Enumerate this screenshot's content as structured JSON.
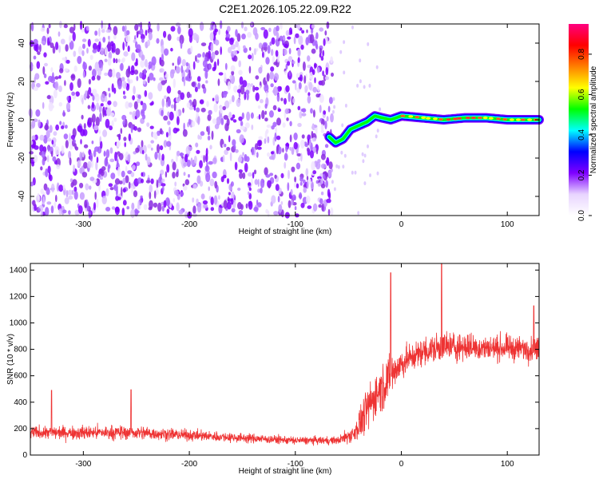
{
  "title": "C2E1.2026.105.22.09.R22",
  "chart_data": [
    {
      "type": "heatmap",
      "xlabel": "Height of straight line (km)",
      "ylabel": "Frequency (Hz)",
      "xlim": [
        -350,
        130
      ],
      "ylim": [
        -50,
        50
      ],
      "xticks": [
        -300,
        -200,
        -100,
        0,
        100
      ],
      "yticks": [
        -40,
        -20,
        0,
        20,
        40
      ],
      "colorbar": {
        "label": "Normalized spectral amplitude",
        "range": [
          0.0,
          0.95
        ],
        "ticks": [
          0.0,
          0.2,
          0.4,
          0.6,
          0.8
        ],
        "tick_labels": [
          "0.0",
          "0.2",
          "0.4",
          "0.6",
          "0.8"
        ],
        "colormap": [
          "#ffffff",
          "#e8d4ff",
          "#7f00ff",
          "#0000ff",
          "#00ffff",
          "#00ff00",
          "#ffff00",
          "#ff7f00",
          "#ff0000",
          "#ff0080"
        ]
      },
      "noise_region": {
        "x_range": [
          -350,
          -65
        ],
        "freq_range": [
          -50,
          50
        ],
        "amplitude_range": [
          0.0,
          0.2
        ]
      },
      "signal_trace": [
        {
          "x": -68,
          "f": -9
        },
        {
          "x": -62,
          "f": -12
        },
        {
          "x": -55,
          "f": -10
        },
        {
          "x": -48,
          "f": -5
        },
        {
          "x": -40,
          "f": -3
        },
        {
          "x": -32,
          "f": -1
        },
        {
          "x": -25,
          "f": 2
        },
        {
          "x": -18,
          "f": 1
        },
        {
          "x": -10,
          "f": 0
        },
        {
          "x": 0,
          "f": 2
        },
        {
          "x": 20,
          "f": 1
        },
        {
          "x": 40,
          "f": 0
        },
        {
          "x": 60,
          "f": 1
        },
        {
          "x": 80,
          "f": 1
        },
        {
          "x": 100,
          "f": 0
        },
        {
          "x": 130,
          "f": 0
        }
      ]
    },
    {
      "type": "line",
      "xlabel": "Height of straight line (km)",
      "ylabel": "SNR (10 * v/v)",
      "xlim": [
        -350,
        130
      ],
      "ylim": [
        0,
        1450
      ],
      "xticks": [
        -300,
        -200,
        -100,
        0,
        100
      ],
      "yticks": [
        0,
        200,
        400,
        600,
        800,
        1000,
        1200,
        1400
      ],
      "color": "#ee3333",
      "envelope": {
        "x": [
          -350,
          -300,
          -250,
          -200,
          -150,
          -100,
          -60,
          -45,
          -35,
          -25,
          -15,
          -5,
          5,
          20,
          40,
          60,
          80,
          100,
          130
        ],
        "mean": [
          170,
          170,
          170,
          150,
          130,
          110,
          110,
          160,
          300,
          450,
          550,
          650,
          720,
          780,
          820,
          820,
          810,
          810,
          800
        ],
        "spread": [
          80,
          90,
          90,
          70,
          60,
          50,
          50,
          120,
          250,
          300,
          300,
          250,
          180,
          180,
          200,
          180,
          160,
          160,
          150
        ]
      },
      "peaks": [
        {
          "x": -330,
          "y": 490
        },
        {
          "x": -255,
          "y": 495
        },
        {
          "x": -10,
          "y": 1380
        },
        {
          "x": 38,
          "y": 1450
        },
        {
          "x": 125,
          "y": 1130
        }
      ]
    }
  ]
}
